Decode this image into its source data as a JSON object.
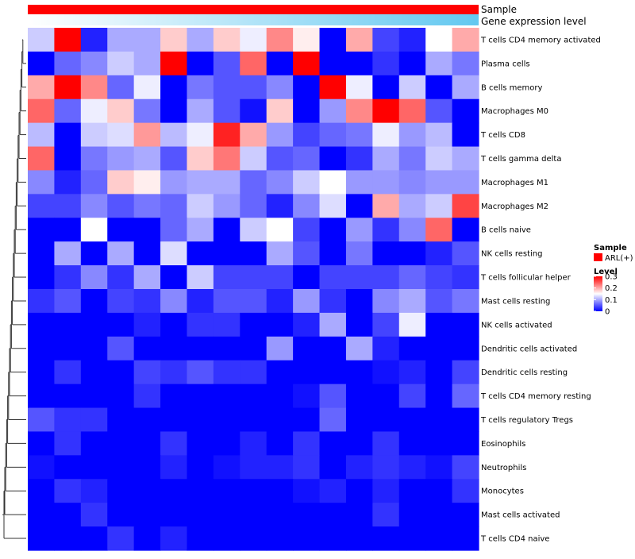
{
  "chart_data": {
    "type": "heatmap",
    "title": "",
    "annotations": {
      "sample_label": "Sample",
      "expression_label": "Gene expression level",
      "sample_color": "#ff0000",
      "expression_gradient": [
        "#ffffff",
        "#63c8f0"
      ]
    },
    "rows": [
      "T cells CD4 memory activated",
      "Plasma cells",
      "B cells memory",
      "Macrophages M0",
      "T cells CD8",
      "T cells gamma delta",
      "Macrophages M1",
      "Macrophages M2",
      "B cells naive",
      "NK cells resting",
      "T cells follicular helper",
      "Mast cells resting",
      "NK cells activated",
      "Dendritic cells activated",
      "Dendritic cells resting",
      "T cells CD4 memory resting",
      "T cells regulatory  Tregs",
      "Eosinophils",
      "Neutrophils",
      "Monocytes",
      "Mast cells activated",
      "T cells CD4 naive"
    ],
    "columns": 17,
    "values": [
      [
        0.12,
        0.3,
        0.02,
        0.1,
        0.1,
        0.18,
        0.1,
        0.18,
        0.14,
        0.22,
        0.16,
        0.0,
        0.2,
        0.04,
        0.02,
        0.15,
        0.2
      ],
      [
        0.0,
        0.06,
        0.08,
        0.12,
        0.1,
        0.3,
        0.0,
        0.05,
        0.24,
        0.0,
        0.3,
        0.0,
        0.0,
        0.03,
        0.0,
        0.1,
        0.07
      ],
      [
        0.2,
        0.3,
        0.22,
        0.06,
        0.14,
        0.0,
        0.07,
        0.05,
        0.05,
        0.08,
        0.0,
        0.3,
        0.14,
        0.0,
        0.12,
        0.0,
        0.1
      ],
      [
        0.24,
        0.06,
        0.14,
        0.18,
        0.07,
        0.0,
        0.1,
        0.05,
        0.01,
        0.18,
        0.0,
        0.09,
        0.22,
        0.3,
        0.24,
        0.05,
        0.0
      ],
      [
        0.11,
        0.0,
        0.12,
        0.13,
        0.21,
        0.11,
        0.14,
        0.28,
        0.2,
        0.09,
        0.04,
        0.06,
        0.07,
        0.14,
        0.09,
        0.11,
        0.0
      ],
      [
        0.24,
        0.0,
        0.07,
        0.09,
        0.1,
        0.05,
        0.18,
        0.23,
        0.12,
        0.05,
        0.06,
        0.0,
        0.03,
        0.1,
        0.07,
        0.12,
        0.1
      ],
      [
        0.08,
        0.02,
        0.06,
        0.18,
        0.16,
        0.09,
        0.1,
        0.1,
        0.06,
        0.08,
        0.12,
        0.15,
        0.09,
        0.09,
        0.08,
        0.09,
        0.09
      ],
      [
        0.04,
        0.04,
        0.08,
        0.05,
        0.07,
        0.06,
        0.12,
        0.09,
        0.06,
        0.02,
        0.08,
        0.13,
        0.0,
        0.2,
        0.1,
        0.12,
        0.26
      ],
      [
        0.0,
        0.0,
        0.15,
        0.0,
        0.0,
        0.06,
        0.1,
        0.0,
        0.12,
        0.15,
        0.04,
        0.0,
        0.09,
        0.03,
        0.08,
        0.24,
        0.0
      ],
      [
        0.0,
        0.1,
        0.0,
        0.1,
        0.0,
        0.13,
        0.0,
        0.0,
        0.0,
        0.1,
        0.05,
        0.0,
        0.07,
        0.0,
        0.0,
        0.02,
        0.05
      ],
      [
        0.0,
        0.03,
        0.08,
        0.03,
        0.1,
        0.0,
        0.12,
        0.04,
        0.04,
        0.04,
        0.0,
        0.04,
        0.04,
        0.04,
        0.06,
        0.04,
        0.03
      ],
      [
        0.03,
        0.05,
        0.0,
        0.04,
        0.03,
        0.08,
        0.02,
        0.05,
        0.05,
        0.02,
        0.09,
        0.03,
        0.0,
        0.08,
        0.1,
        0.05,
        0.07
      ],
      [
        0.0,
        0.0,
        0.0,
        0.0,
        0.02,
        0.0,
        0.03,
        0.03,
        0.0,
        0.0,
        0.02,
        0.1,
        0.0,
        0.04,
        0.14,
        0.0,
        0.0
      ],
      [
        0.0,
        0.0,
        0.0,
        0.05,
        0.0,
        0.0,
        0.0,
        0.0,
        0.0,
        0.09,
        0.0,
        0.0,
        0.1,
        0.02,
        0.0,
        0.0,
        0.0
      ],
      [
        0.0,
        0.03,
        0.0,
        0.0,
        0.04,
        0.03,
        0.05,
        0.03,
        0.03,
        0.0,
        0.0,
        0.0,
        0.0,
        0.01,
        0.02,
        0.0,
        0.04
      ],
      [
        0.0,
        0.0,
        0.0,
        0.0,
        0.03,
        0.0,
        0.0,
        0.0,
        0.0,
        0.0,
        0.01,
        0.05,
        0.0,
        0.0,
        0.04,
        0.0,
        0.06
      ],
      [
        0.05,
        0.03,
        0.03,
        0.0,
        0.0,
        0.0,
        0.0,
        0.0,
        0.0,
        0.0,
        0.0,
        0.06,
        0.0,
        0.0,
        0.0,
        0.0,
        0.0
      ],
      [
        0.0,
        0.03,
        0.0,
        0.0,
        0.0,
        0.03,
        0.0,
        0.0,
        0.02,
        0.0,
        0.03,
        0.0,
        0.0,
        0.03,
        0.0,
        0.0,
        0.0
      ],
      [
        0.01,
        0.0,
        0.0,
        0.0,
        0.0,
        0.02,
        0.0,
        0.01,
        0.02,
        0.02,
        0.03,
        0.0,
        0.02,
        0.03,
        0.02,
        0.01,
        0.04
      ],
      [
        0.0,
        0.03,
        0.02,
        0.0,
        0.0,
        0.0,
        0.0,
        0.0,
        0.0,
        0.0,
        0.01,
        0.02,
        0.0,
        0.02,
        0.0,
        0.0,
        0.03
      ],
      [
        0.0,
        0.0,
        0.03,
        0.0,
        0.0,
        0.0,
        0.0,
        0.0,
        0.0,
        0.0,
        0.0,
        0.0,
        0.0,
        0.03,
        0.0,
        0.0,
        0.0
      ],
      [
        0.0,
        0.0,
        0.0,
        0.03,
        0.0,
        0.02,
        0.0,
        0.0,
        0.0,
        0.0,
        0.0,
        0.0,
        0.0,
        0.0,
        0.0,
        0.0,
        0.0
      ]
    ],
    "color_scale": {
      "min": 0,
      "max": 0.3,
      "low": "#0000ff",
      "mid": "#ffffff",
      "high": "#ff0000",
      "midpoint": 0.15
    },
    "legend": {
      "sample_title": "Sample",
      "sample_entry": "ARL(+)",
      "level_title": "Level",
      "level_ticks": [
        "0.3",
        "0.2",
        "0.1",
        "0"
      ],
      "level_values": [
        0.3,
        0.2,
        0.1,
        0
      ]
    }
  }
}
